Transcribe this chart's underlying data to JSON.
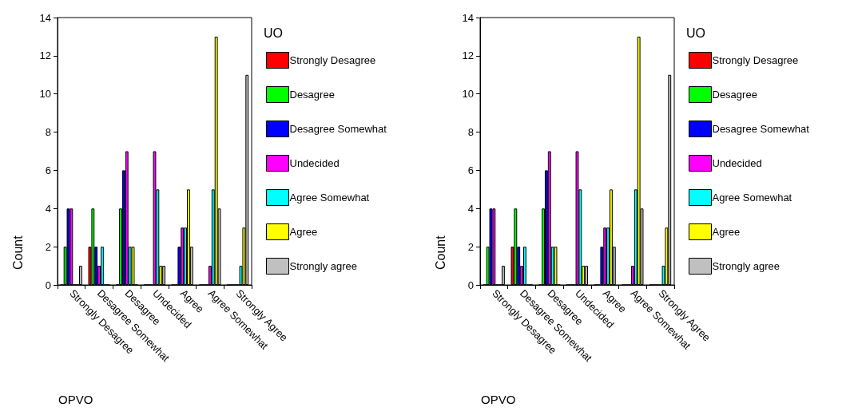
{
  "chart_data": [
    {
      "type": "bar",
      "xlabel": "OPVO",
      "ylabel": "Count",
      "legend_title": "UO",
      "legend": "right",
      "grid": false,
      "categories": [
        "Strongly Desagree",
        "Desagree Somewhat",
        "Desagree",
        "Undecided",
        "Agree",
        "Agree Somewhat",
        "Strongly Agree"
      ],
      "ylim": [
        0,
        14
      ],
      "yticks": [
        0,
        2,
        4,
        6,
        8,
        10,
        12,
        14
      ],
      "series": [
        {
          "name": "Strongly Desagree",
          "color": "#ff0000",
          "values": [
            0,
            2,
            0,
            0,
            0,
            0,
            0
          ]
        },
        {
          "name": "Desagree",
          "color": "#00ff00",
          "values": [
            2,
            4,
            4,
            0,
            0,
            0,
            0
          ]
        },
        {
          "name": "Desagree Somewhat",
          "color": "#0000ff",
          "values": [
            4,
            2,
            6,
            0,
            2,
            0,
            0
          ]
        },
        {
          "name": "Undecided",
          "color": "#ff00ff",
          "values": [
            4,
            1,
            7,
            7,
            3,
            1,
            0
          ]
        },
        {
          "name": "Agree Somewhat",
          "color": "#00ffff",
          "values": [
            0,
            2,
            2,
            5,
            3,
            5,
            1
          ]
        },
        {
          "name": "Agree",
          "color": "#ffff00",
          "values": [
            0,
            0,
            2,
            1,
            5,
            13,
            3
          ]
        },
        {
          "name": "Strongly agree",
          "color": "#c0c0c0",
          "values": [
            1,
            0,
            0,
            1,
            2,
            4,
            11
          ]
        }
      ]
    },
    {
      "type": "bar",
      "xlabel": "OPVO",
      "ylabel": "Count",
      "legend_title": "UO",
      "legend": "right",
      "grid": false,
      "categories": [
        "Strongly Desagree",
        "Desagree Somewhat",
        "Desagree",
        "Undecided",
        "Agree",
        "Agree Somewhat",
        "Strongly Agree"
      ],
      "ylim": [
        0,
        14
      ],
      "yticks": [
        0,
        2,
        4,
        6,
        8,
        10,
        12,
        14
      ],
      "series": [
        {
          "name": "Strongly Desagree",
          "color": "#ff0000",
          "values": [
            0,
            2,
            0,
            0,
            0,
            0,
            0
          ]
        },
        {
          "name": "Desagree",
          "color": "#00ff00",
          "values": [
            2,
            4,
            4,
            0,
            0,
            0,
            0
          ]
        },
        {
          "name": "Desagree Somewhat",
          "color": "#0000ff",
          "values": [
            4,
            2,
            6,
            0,
            2,
            0,
            0
          ]
        },
        {
          "name": "Undecided",
          "color": "#ff00ff",
          "values": [
            4,
            1,
            7,
            7,
            3,
            1,
            0
          ]
        },
        {
          "name": "Agree Somewhat",
          "color": "#00ffff",
          "values": [
            0,
            2,
            2,
            5,
            3,
            5,
            1
          ]
        },
        {
          "name": "Agree",
          "color": "#ffff00",
          "values": [
            0,
            0,
            2,
            1,
            5,
            13,
            3
          ]
        },
        {
          "name": "Strongly agree",
          "color": "#c0c0c0",
          "values": [
            1,
            0,
            0,
            1,
            2,
            4,
            11
          ]
        }
      ]
    }
  ]
}
